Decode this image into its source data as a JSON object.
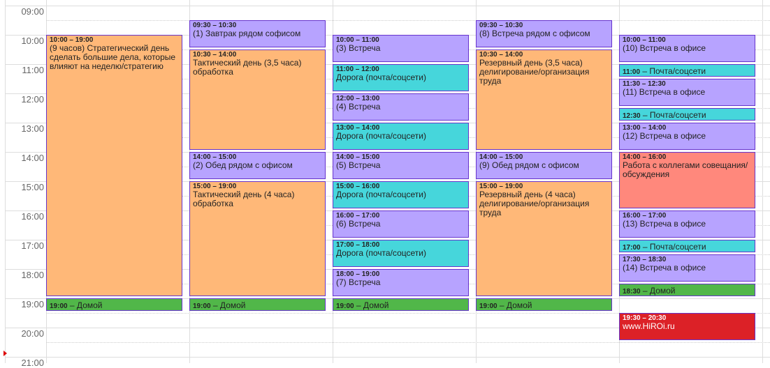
{
  "times": [
    "09:00",
    "10:00",
    "11:00",
    "12:00",
    "13:00",
    "14:00",
    "15:00",
    "16:00",
    "17:00",
    "18:00",
    "19:00",
    "20:00",
    "21:00"
  ],
  "colors": {
    "orange": "#ffb878",
    "purple": "#b7a3ff",
    "teal": "#46d6db",
    "green": "#51b749",
    "salmon": "#ff887c",
    "red": "#dc2127",
    "border": "#6633cc"
  },
  "days": [
    {
      "events": [
        {
          "start": "10:00",
          "end": "19:00",
          "time": "10:00 – 19:00",
          "title": "(9 часов) Стратегический день сделать большие дела, которые влияют на неделю/стратегию",
          "color": "orange"
        },
        {
          "start": "19:00",
          "end": "19:30",
          "time": "19:00",
          "title": "– Домой",
          "color": "green",
          "short": true
        }
      ]
    },
    {
      "events": [
        {
          "start": "09:30",
          "end": "10:30",
          "time": "09:30 – 10:30",
          "title": "(1) Завтрак рядом софисом",
          "color": "purple"
        },
        {
          "start": "10:30",
          "end": "14:00",
          "time": "10:30 – 14:00",
          "title": "Тактический день (3,5 часа) обработка",
          "color": "orange"
        },
        {
          "start": "14:00",
          "end": "15:00",
          "time": "14:00 – 15:00",
          "title": "(2) Обед рядом с офисом",
          "color": "purple"
        },
        {
          "start": "15:00",
          "end": "19:00",
          "time": "15:00 – 19:00",
          "title": "Тактический день (4 часа) обработка",
          "color": "orange"
        },
        {
          "start": "19:00",
          "end": "19:30",
          "time": "19:00",
          "title": "– Домой",
          "color": "green",
          "short": true
        }
      ]
    },
    {
      "events": [
        {
          "start": "10:00",
          "end": "11:00",
          "time": "10:00 – 11:00",
          "title": "(3) Встреча",
          "color": "purple"
        },
        {
          "start": "11:00",
          "end": "12:00",
          "time": "11:00 – 12:00",
          "title": "Дорога (почта/соцсети)",
          "color": "teal"
        },
        {
          "start": "12:00",
          "end": "13:00",
          "time": "12:00 – 13:00",
          "title": "(4) Встреча",
          "color": "purple"
        },
        {
          "start": "13:00",
          "end": "14:00",
          "time": "13:00 – 14:00",
          "title": "Дорога (почта/соцсети)",
          "color": "teal"
        },
        {
          "start": "14:00",
          "end": "15:00",
          "time": "14:00 – 15:00",
          "title": "(5) Встреча",
          "color": "purple"
        },
        {
          "start": "15:00",
          "end": "16:00",
          "time": "15:00 – 16:00",
          "title": "Дорога (почта/соцсети)",
          "color": "teal"
        },
        {
          "start": "16:00",
          "end": "17:00",
          "time": "16:00 – 17:00",
          "title": "(6) Встреча",
          "color": "purple"
        },
        {
          "start": "17:00",
          "end": "18:00",
          "time": "17:00 – 18:00",
          "title": "Дорога (почта/соцсети)",
          "color": "teal"
        },
        {
          "start": "18:00",
          "end": "19:00",
          "time": "18:00 – 19:00",
          "title": "(7) Встреча",
          "color": "purple"
        },
        {
          "start": "19:00",
          "end": "19:30",
          "time": "19:00",
          "title": "– Домой",
          "color": "green",
          "short": true
        }
      ]
    },
    {
      "events": [
        {
          "start": "09:30",
          "end": "10:30",
          "time": "09:30 – 10:30",
          "title": "(8) Встреча рядом с офисом",
          "color": "purple"
        },
        {
          "start": "10:30",
          "end": "14:00",
          "time": "10:30 – 14:00",
          "title": "Резервный день (3,5 часа) делигирование/организация труда",
          "color": "orange"
        },
        {
          "start": "14:00",
          "end": "15:00",
          "time": "14:00 – 15:00",
          "title": "(9) Обед рядом с офисом",
          "color": "purple"
        },
        {
          "start": "15:00",
          "end": "19:00",
          "time": "15:00 – 19:00",
          "title": "Резервный день (4 часа) делигирование/организация труда",
          "color": "orange"
        },
        {
          "start": "19:00",
          "end": "19:30",
          "time": "19:00",
          "title": "– Домой",
          "color": "green",
          "short": true
        }
      ]
    },
    {
      "events": [
        {
          "start": "10:00",
          "end": "11:00",
          "time": "10:00 – 11:00",
          "title": "(10) Встреча в офисе",
          "color": "purple"
        },
        {
          "start": "11:00",
          "end": "11:30",
          "time": "11:00",
          "title": "– Почта/соцсети",
          "color": "teal",
          "short": true
        },
        {
          "start": "11:30",
          "end": "12:30",
          "time": "11:30 – 12:30",
          "title": "(11) Встреча в офисе",
          "color": "purple"
        },
        {
          "start": "12:30",
          "end": "13:00",
          "time": "12:30",
          "title": "– Почта/соцсети",
          "color": "teal",
          "short": true
        },
        {
          "start": "13:00",
          "end": "14:00",
          "time": "13:00 – 14:00",
          "title": "(12) Встреча в офисе",
          "color": "purple"
        },
        {
          "start": "14:00",
          "end": "16:00",
          "time": "14:00 – 16:00",
          "title": "Работа с коллегами совещания/ обсуждения",
          "color": "salmon"
        },
        {
          "start": "16:00",
          "end": "17:00",
          "time": "16:00 – 17:00",
          "title": "(13) Встреча в офисе",
          "color": "purple"
        },
        {
          "start": "17:00",
          "end": "17:30",
          "time": "17:00",
          "title": "– Почта/соцсети",
          "color": "teal",
          "short": true
        },
        {
          "start": "17:30",
          "end": "18:30",
          "time": "17:30 – 18:30",
          "title": "(14) Встреча в офисе",
          "color": "purple"
        },
        {
          "start": "18:30",
          "end": "19:00",
          "time": "18:30",
          "title": "– Домой",
          "color": "green",
          "short": true
        },
        {
          "start": "19:30",
          "end": "20:30",
          "time": "19:30 – 20:30",
          "title": "www.HiROi.ru",
          "color": "red",
          "light": true
        }
      ]
    }
  ]
}
